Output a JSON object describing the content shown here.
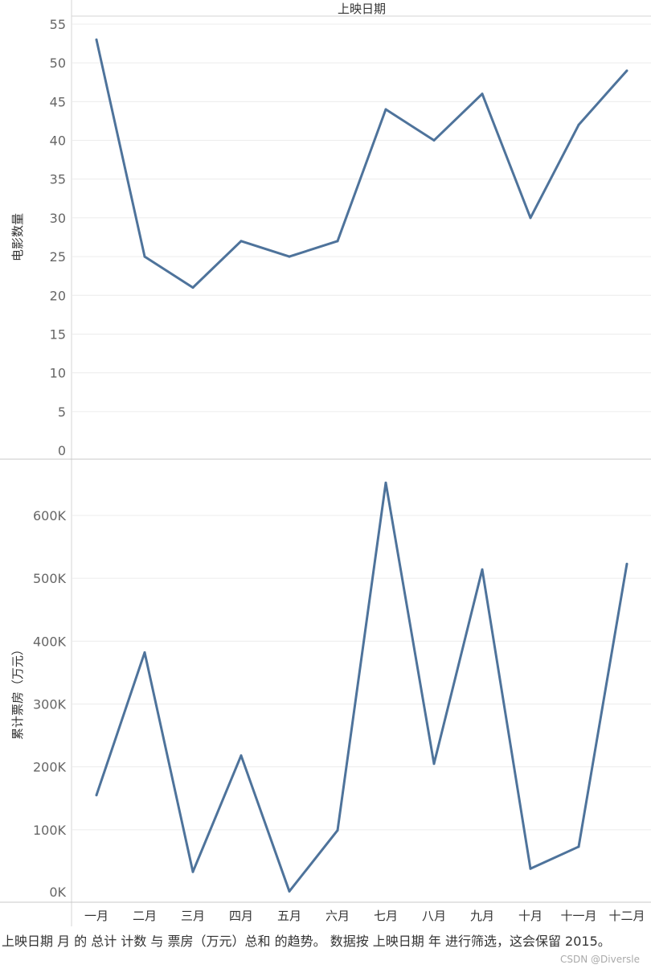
{
  "chart_data": [
    {
      "type": "line",
      "header": "上映日期",
      "ylabel": "电影数量",
      "categories": [
        "一月",
        "二月",
        "三月",
        "四月",
        "五月",
        "六月",
        "七月",
        "八月",
        "九月",
        "十月",
        "十一月",
        "十二月"
      ],
      "values": [
        53,
        25,
        21,
        27,
        25,
        27,
        44,
        40,
        46,
        30,
        42,
        49
      ],
      "ylim": [
        0,
        55
      ],
      "yticks": [
        "55",
        "50",
        "45",
        "40",
        "35",
        "30",
        "25",
        "20",
        "15",
        "10",
        "5",
        "0"
      ],
      "ytick_values": [
        55,
        50,
        45,
        40,
        35,
        30,
        25,
        20,
        15,
        10,
        5,
        0
      ],
      "color": "#4e739b",
      "grid": true
    },
    {
      "type": "line",
      "ylabel": "累计票房（万元）",
      "categories": [
        "一月",
        "二月",
        "三月",
        "四月",
        "五月",
        "六月",
        "七月",
        "八月",
        "九月",
        "十月",
        "十一月",
        "十二月"
      ],
      "values": [
        155000,
        382000,
        33000,
        218000,
        2000,
        99000,
        652000,
        205000,
        514000,
        38000,
        73000,
        523000
      ],
      "ylim": [
        0,
        680000
      ],
      "yticks": [
        "600K",
        "500K",
        "400K",
        "300K",
        "200K",
        "100K",
        "0K"
      ],
      "ytick_values": [
        600000,
        500000,
        400000,
        300000,
        200000,
        100000,
        0
      ],
      "color": "#4e739b",
      "grid": true
    }
  ],
  "caption": "上映日期 月 的 总计 计数 与 票房（万元）总和 的趋势。 数据按 上映日期 年 进行筛选，这会保留 2015。",
  "watermark": "CSDN @Diversle"
}
